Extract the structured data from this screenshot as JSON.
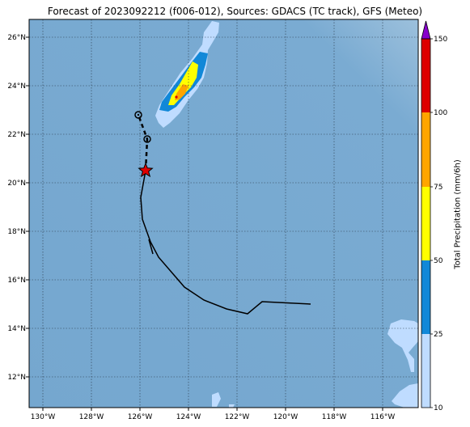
{
  "title": "Forecast of 2023092212 (f006-012), Sources: GDACS (TC track), GFS (Meteo)",
  "lat_labels": [
    "26°N",
    "24°N",
    "22°N",
    "20°N",
    "18°N",
    "16°N",
    "14°N",
    "12°N"
  ],
  "lon_labels": [
    "130°W",
    "128°W",
    "126°W",
    "124°W",
    "122°W",
    "120°W",
    "118°W",
    "116°W"
  ],
  "colorbar": {
    "label": "Total Precipitation (mm/6h)",
    "ticks": [
      "10",
      "25",
      "50",
      "75",
      "100",
      "150"
    ],
    "colors": [
      "#bfdcff",
      "#1188d8",
      "#ffff00",
      "#ffa500",
      "#dd0000",
      "#8800cc"
    ]
  },
  "map": {
    "ocean_color": "#78aad0",
    "grid": "dotted"
  },
  "track": {
    "current_position_marker": "star",
    "forecast_marker": "circle"
  }
}
